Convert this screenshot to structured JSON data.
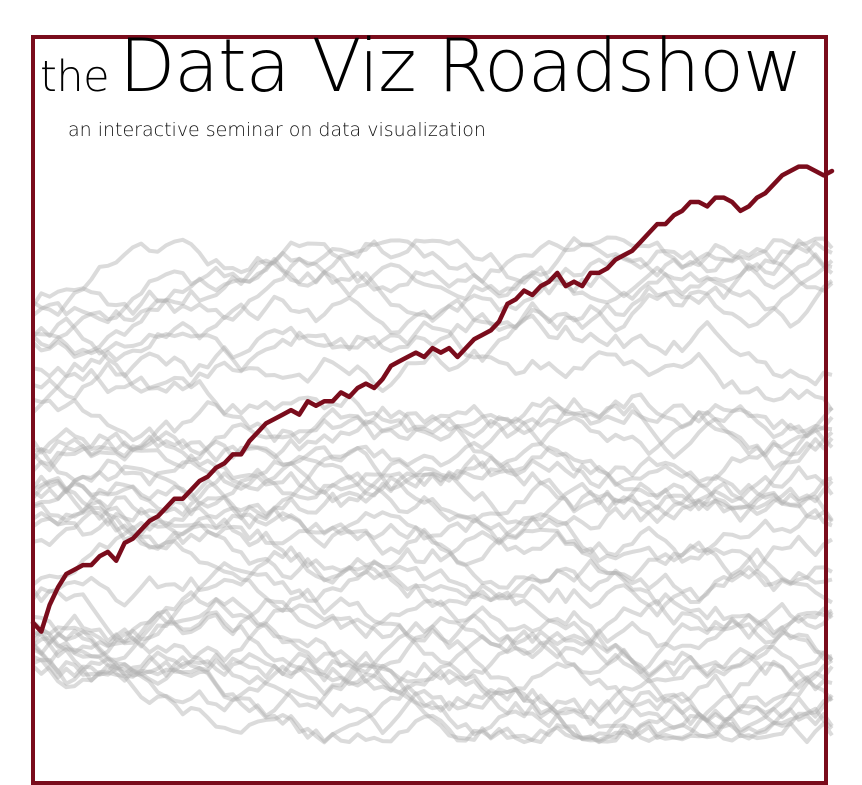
{
  "title": {
    "prefix": "the",
    "main": "Data Viz Roadshow"
  },
  "subtitle": "an interactive seminar on data visualization",
  "colors": {
    "highlight": "#7a0c1c",
    "background_series": "#b0b0b0",
    "frame": "#7a0c1c"
  },
  "chart_data": {
    "type": "line",
    "axes_visible": false,
    "grid": false,
    "legend": "none",
    "background_series_count": 40,
    "background_style": "semi-transparent gray random walks",
    "highlight_series": {
      "color": "#7a0c1c",
      "trend": "rising",
      "values": [
        31,
        29,
        35,
        39,
        42,
        43,
        44,
        44,
        46,
        47,
        45,
        49,
        50,
        52,
        54,
        55,
        57,
        59,
        59,
        61,
        63,
        64,
        66,
        67,
        69,
        69,
        72,
        74,
        76,
        77,
        78,
        79,
        78,
        81,
        80,
        81,
        81,
        83,
        82,
        84,
        85,
        84,
        86,
        89,
        90,
        91,
        92,
        91,
        93,
        92,
        93,
        91,
        93,
        95,
        96,
        97,
        99,
        103,
        104,
        106,
        105,
        107,
        108,
        110,
        107,
        108,
        107,
        110,
        110,
        111,
        113,
        114,
        115,
        117,
        119,
        121,
        121,
        123,
        124,
        126,
        126,
        125,
        127,
        127,
        126,
        124,
        125,
        127,
        128,
        130,
        132,
        133,
        134,
        134,
        133,
        132,
        133
      ]
    }
  }
}
